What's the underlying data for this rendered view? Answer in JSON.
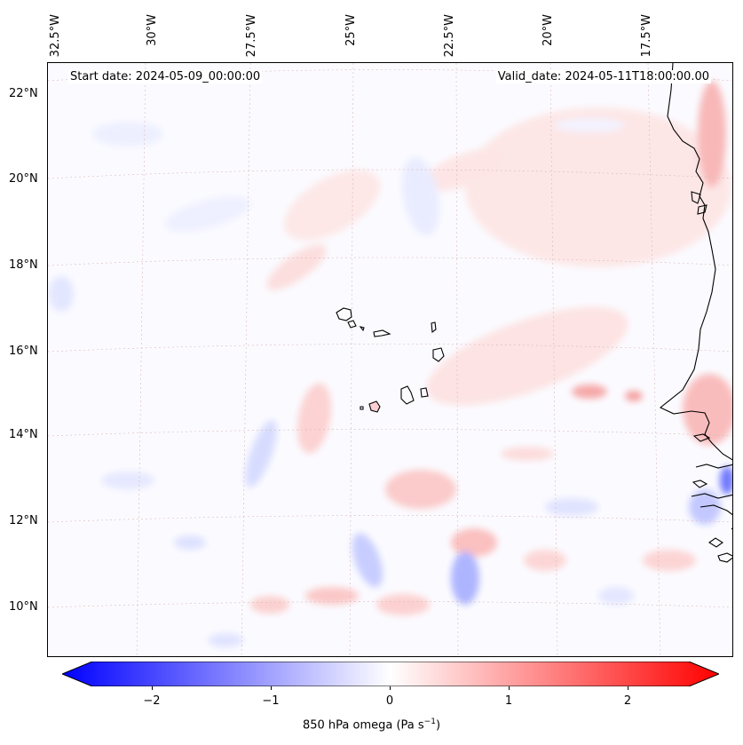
{
  "lon_labels": [
    "32.5°W",
    "30°W",
    "27.5°W",
    "25°W",
    "22.5°W",
    "20°W",
    "17.5°W"
  ],
  "lat_labels": [
    "22°N",
    "20°N",
    "18°N",
    "16°N",
    "14°N",
    "12°N",
    "10°N"
  ],
  "header": {
    "start_date": "Start date: 2024-05-09_00:00:00",
    "valid_date": "Valid_date: 2024-05-11T18:00:00.00"
  },
  "colorbar": {
    "ticks": [
      "−2",
      "−1",
      "0",
      "1",
      "2"
    ],
    "label_main": "850 hPa omega (Pa s",
    "label_exp": "−1",
    "label_end": ")",
    "range": [
      -2.6,
      2.6
    ],
    "low_color": "#0000ff",
    "mid_color": "#ffffff",
    "high_color": "#ff0000"
  }
}
